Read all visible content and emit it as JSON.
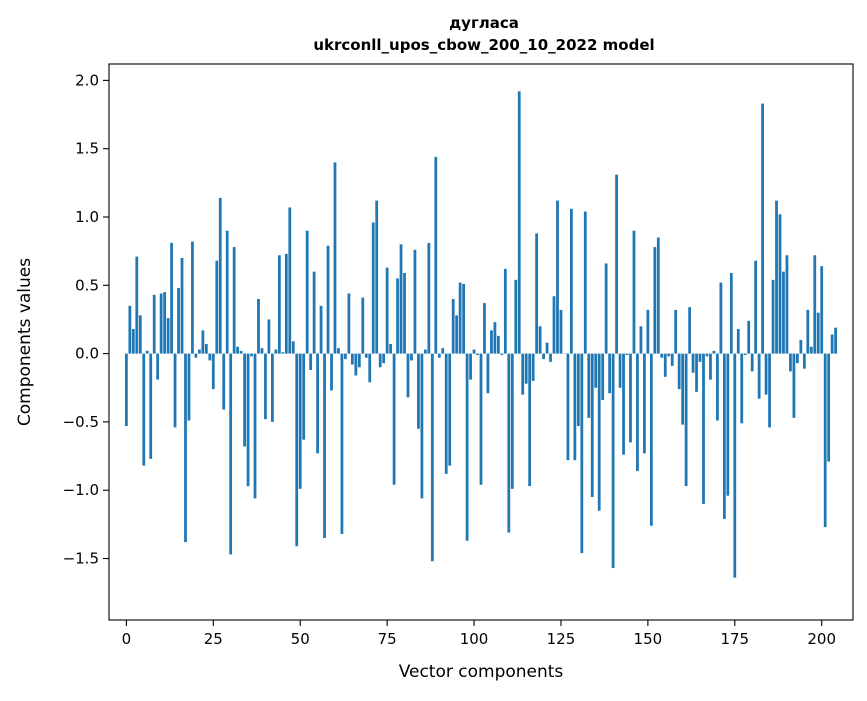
{
  "chart_data": {
    "type": "bar",
    "title_line1": "дугласа",
    "title_line2": "ukrconll_upos_cbow_200_10_2022 model",
    "xlabel": "Vector components",
    "ylabel": "Components values",
    "xlim": [
      -5,
      209
    ],
    "ylim": [
      -1.95,
      2.12
    ],
    "xticks": [
      0,
      25,
      50,
      75,
      100,
      125,
      150,
      175,
      200
    ],
    "yticks": [
      -1.5,
      -1.0,
      -0.5,
      0.0,
      0.5,
      1.0,
      1.5,
      2.0
    ],
    "xtick_labels": [
      "0",
      "25",
      "50",
      "75",
      "100",
      "125",
      "150",
      "175",
      "200"
    ],
    "ytick_labels": [
      "−1.5",
      "−1.0",
      "−0.5",
      "0.0",
      "0.5",
      "1.0",
      "1.5",
      "2.0"
    ],
    "bar_color": "#1f77b4",
    "values": [
      -0.53,
      0.35,
      0.18,
      0.71,
      0.28,
      -0.82,
      0.02,
      -0.77,
      0.43,
      -0.19,
      0.44,
      0.45,
      0.26,
      0.81,
      -0.54,
      0.48,
      0.7,
      -1.38,
      -0.49,
      0.82,
      -0.03,
      0.03,
      0.17,
      0.07,
      -0.05,
      -0.26,
      0.68,
      1.14,
      -0.41,
      0.9,
      -1.47,
      0.78,
      0.05,
      0.02,
      -0.68,
      -0.97,
      -0.02,
      -1.06,
      0.4,
      0.04,
      -0.48,
      0.25,
      -0.5,
      0.03,
      0.72,
      0.01,
      0.73,
      1.07,
      0.09,
      -1.41,
      -0.99,
      -0.63,
      0.9,
      -0.12,
      0.6,
      -0.73,
      0.35,
      -1.35,
      0.79,
      -0.27,
      1.4,
      0.04,
      -1.32,
      -0.04,
      0.44,
      -0.08,
      -0.16,
      -0.1,
      0.41,
      -0.03,
      -0.21,
      0.96,
      1.12,
      -0.1,
      -0.07,
      0.63,
      0.07,
      -0.96,
      0.55,
      0.8,
      0.59,
      -0.32,
      -0.05,
      0.76,
      -0.55,
      -1.06,
      0.03,
      0.81,
      -1.52,
      1.44,
      -0.03,
      0.04,
      -0.88,
      -0.82,
      0.4,
      0.28,
      0.52,
      0.51,
      -1.37,
      -0.19,
      0.03,
      -0.01,
      -0.96,
      0.37,
      -0.29,
      0.17,
      0.23,
      0.13,
      -0.01,
      0.62,
      -1.31,
      -0.99,
      0.54,
      1.92,
      -0.3,
      -0.22,
      -0.97,
      -0.2,
      0.88,
      0.2,
      -0.04,
      0.08,
      -0.06,
      0.42,
      1.12,
      0.32,
      0.0,
      -0.78,
      1.06,
      -0.78,
      -0.53,
      -1.46,
      1.04,
      -0.47,
      -1.05,
      -0.25,
      -1.15,
      -0.34,
      0.66,
      -0.29,
      -1.57,
      1.31,
      -0.25,
      -0.74,
      -0.01,
      -0.65,
      0.9,
      -0.86,
      0.2,
      -0.73,
      0.32,
      -1.26,
      0.78,
      0.85,
      -0.03,
      -0.17,
      -0.02,
      -0.09,
      0.32,
      -0.26,
      -0.52,
      -0.97,
      0.34,
      -0.14,
      -0.28,
      -0.06,
      -1.1,
      -0.02,
      -0.19,
      0.02,
      -0.49,
      0.52,
      -1.21,
      -1.04,
      0.59,
      -1.64,
      0.18,
      -0.51,
      -0.01,
      0.24,
      -0.13,
      0.68,
      -0.33,
      1.83,
      -0.3,
      -0.54,
      0.54,
      1.12,
      1.02,
      0.6,
      0.72,
      -0.13,
      -0.47,
      -0.07,
      0.1,
      -0.11,
      0.32,
      0.05,
      0.72,
      0.3,
      0.64,
      -1.27,
      -0.79,
      0.14,
      0.19
    ]
  }
}
